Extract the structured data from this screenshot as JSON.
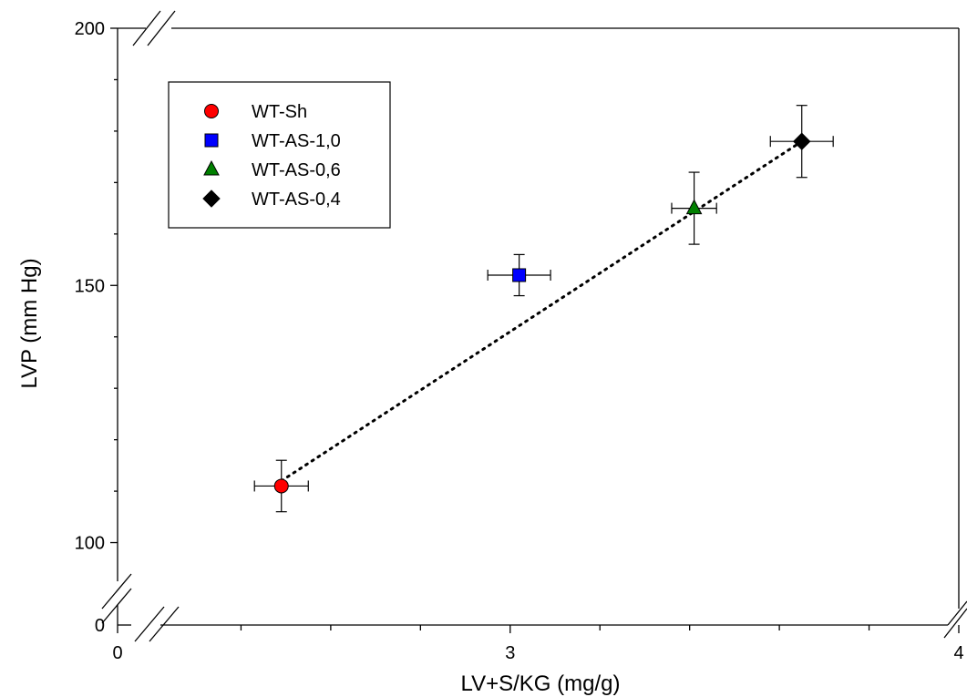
{
  "chart_data": {
    "type": "scatter",
    "title": "",
    "xlabel": "LV+S/KG (mg/g)",
    "ylabel": "LVP (mm Hg)",
    "axis_breaks": true,
    "x_ticks": [
      {
        "value": 0,
        "label": "0"
      },
      {
        "value": 3,
        "label": "3"
      },
      {
        "value": 4,
        "label": "4"
      }
    ],
    "x_displayed_range": [
      2.2,
      4.0
    ],
    "y_ticks": [
      {
        "value": 0,
        "label": "0"
      },
      {
        "value": 100,
        "label": "100"
      },
      {
        "value": 150,
        "label": "150"
      },
      {
        "value": 200,
        "label": "200"
      }
    ],
    "y_displayed_range": [
      90,
      200
    ],
    "legend_position": "top-left",
    "grid": false,
    "series": [
      {
        "name": "WT-Sh",
        "marker": "circle",
        "color": "#ff0000",
        "x": 2.49,
        "y": 111,
        "x_err": 0.06,
        "y_err": 5
      },
      {
        "name": "WT-AS-1,0",
        "marker": "square",
        "color": "#0000ff",
        "x": 3.02,
        "y": 152,
        "x_err": 0.07,
        "y_err": 4
      },
      {
        "name": "WT-AS-0,6",
        "marker": "triangle",
        "color": "#008000",
        "x": 3.41,
        "y": 165,
        "x_err": 0.05,
        "y_err": 7
      },
      {
        "name": "WT-AS-0,4",
        "marker": "diamond",
        "color": "#000000",
        "x": 3.65,
        "y": 178,
        "x_err": 0.07,
        "y_err": 7
      }
    ],
    "trend_line": {
      "style": "dotted",
      "from": [
        2.49,
        112
      ],
      "to": [
        3.65,
        178
      ]
    }
  }
}
